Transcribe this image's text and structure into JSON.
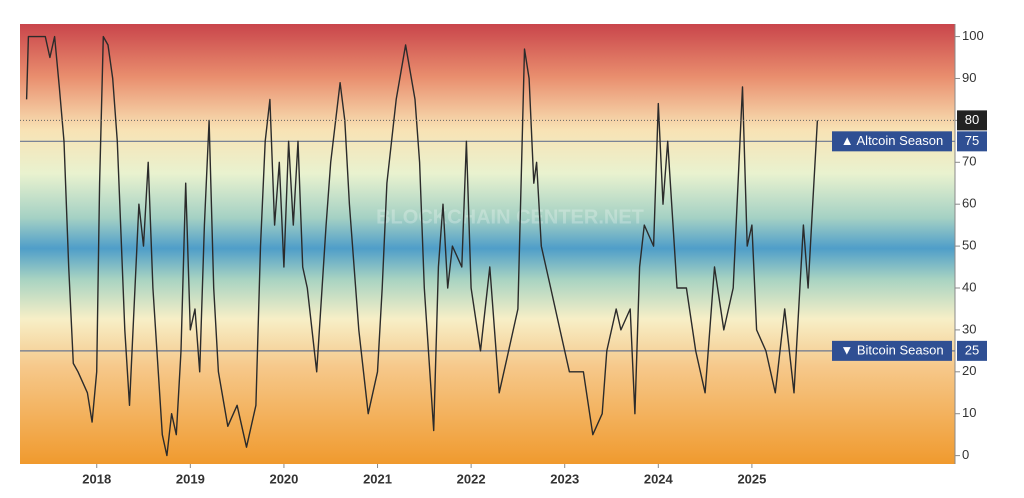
{
  "chart_data": {
    "type": "line",
    "watermark": "BLOCKCHAIN CENTER.NET",
    "color": "#2b2b2b",
    "xlim": [
      2017.18,
      2027.17
    ],
    "xticks": [
      2018,
      2019,
      2020,
      2021,
      2022,
      2023,
      2024,
      2025
    ],
    "ylim": [
      -2,
      103
    ],
    "yticks": [
      0,
      10,
      20,
      30,
      40,
      50,
      60,
      70,
      80,
      90,
      100
    ],
    "reference_lines": [
      {
        "value": 75,
        "label": "▲ Altcoin Season",
        "color": "#2f4f93"
      },
      {
        "value": 25,
        "label": "▼ Bitcoin Season",
        "color": "#2f4f93"
      }
    ],
    "x": [
      2017.25,
      2017.27,
      2017.45,
      2017.5,
      2017.55,
      2017.6,
      2017.65,
      2017.7,
      2017.75,
      2017.8,
      2017.9,
      2017.95,
      2018.0,
      2018.03,
      2018.07,
      2018.12,
      2018.17,
      2018.22,
      2018.3,
      2018.35,
      2018.45,
      2018.5,
      2018.55,
      2018.6,
      2018.7,
      2018.75,
      2018.8,
      2018.85,
      2018.9,
      2018.95,
      2019.0,
      2019.05,
      2019.1,
      2019.15,
      2019.2,
      2019.25,
      2019.3,
      2019.4,
      2019.5,
      2019.6,
      2019.7,
      2019.75,
      2019.8,
      2019.85,
      2019.9,
      2019.95,
      2020.0,
      2020.05,
      2020.1,
      2020.15,
      2020.2,
      2020.25,
      2020.35,
      2020.45,
      2020.5,
      2020.6,
      2020.65,
      2020.7,
      2020.8,
      2020.9,
      2021.0,
      2021.05,
      2021.1,
      2021.2,
      2021.3,
      2021.4,
      2021.45,
      2021.5,
      2021.6,
      2021.65,
      2021.7,
      2021.75,
      2021.8,
      2021.9,
      2021.95,
      2022.0,
      2022.1,
      2022.2,
      2022.3,
      2022.4,
      2022.5,
      2022.57,
      2022.62,
      2022.67,
      2022.7,
      2022.75,
      2022.85,
      2022.95,
      2023.05,
      2023.2,
      2023.3,
      2023.4,
      2023.45,
      2023.55,
      2023.6,
      2023.7,
      2023.75,
      2023.8,
      2023.85,
      2023.95,
      2024.0,
      2024.05,
      2024.1,
      2024.2,
      2024.3,
      2024.4,
      2024.5,
      2024.6,
      2024.7,
      2024.8,
      2024.9,
      2024.95,
      2025.0,
      2025.05,
      2025.15,
      2025.25,
      2025.35,
      2025.45,
      2025.55,
      2025.6,
      2025.65,
      2025.7
    ],
    "values": [
      85,
      100,
      100,
      95,
      100,
      88,
      75,
      45,
      22,
      20,
      15,
      8,
      20,
      65,
      100,
      98,
      90,
      75,
      30,
      12,
      60,
      50,
      70,
      40,
      5,
      0,
      10,
      5,
      25,
      65,
      30,
      35,
      20,
      55,
      80,
      40,
      20,
      7,
      12,
      2,
      12,
      50,
      75,
      85,
      55,
      70,
      45,
      75,
      55,
      75,
      45,
      40,
      20,
      55,
      70,
      89,
      80,
      60,
      30,
      10,
      20,
      40,
      65,
      85,
      98,
      85,
      70,
      40,
      6,
      45,
      60,
      40,
      50,
      45,
      75,
      40,
      25,
      45,
      15,
      25,
      35,
      97,
      90,
      65,
      70,
      50,
      40,
      30,
      20,
      20,
      5,
      10,
      25,
      35,
      30,
      35,
      10,
      45,
      55,
      50,
      84,
      60,
      75,
      40,
      40,
      25,
      15,
      45,
      30,
      40,
      88,
      50,
      55,
      30,
      25,
      15,
      35,
      15,
      55,
      40,
      60,
      80
    ]
  }
}
